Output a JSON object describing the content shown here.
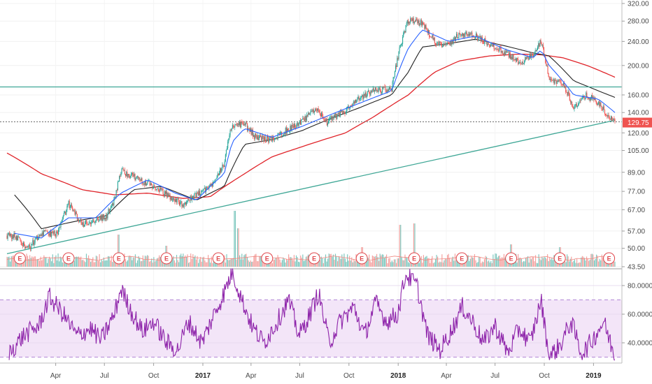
{
  "colors": {
    "up": "#26a69a",
    "down": "#ef5350",
    "vol_up": "#7fc8bf",
    "vol_down": "#f4a3a1",
    "ma_fast": "#2962ff",
    "ma_mid": "#222222",
    "ma_slow": "#e0242a",
    "trendline": "#3fa796",
    "hline": "#3fa796",
    "rsi_line": "#8e24aa",
    "rsi_band": "#f3e5f8",
    "rsi_dash": "#b388d6",
    "price_tag": "#ef5350",
    "earnings": "#e0474c"
  },
  "chart_data": [
    {
      "type": "candlestick",
      "panel": "price",
      "scale": "log",
      "y_ticks": [
        "320.00",
        "280.00",
        "240.00",
        "200.00",
        "160.00",
        "140.00",
        "120.00",
        "105.00",
        "89.00",
        "77.00",
        "67.00",
        "57.00",
        "50.00",
        "43.50"
      ],
      "x_labels": [
        {
          "label": "Apr",
          "date": "2016-04"
        },
        {
          "label": "Jul",
          "date": "2016-07"
        },
        {
          "label": "Oct",
          "date": "2016-10"
        },
        {
          "label": "2017",
          "date": "2017-01"
        },
        {
          "label": "Apr",
          "date": "2017-04"
        },
        {
          "label": "Jul",
          "date": "2017-07"
        },
        {
          "label": "Oct",
          "date": "2017-10"
        },
        {
          "label": "2018",
          "date": "2018-01"
        },
        {
          "label": "Apr",
          "date": "2018-04"
        },
        {
          "label": "Jul",
          "date": "2018-07"
        },
        {
          "label": "Oct",
          "date": "2018-10"
        },
        {
          "label": "2019",
          "date": "2019-01"
        }
      ],
      "close_path": [
        [
          "2016-01-15",
          55
        ],
        [
          "2016-02-10",
          50
        ],
        [
          "2016-03-05",
          56
        ],
        [
          "2016-04-05",
          56
        ],
        [
          "2016-04-25",
          70
        ],
        [
          "2016-05-20",
          60
        ],
        [
          "2016-06-15",
          62
        ],
        [
          "2016-07-05",
          64
        ],
        [
          "2016-07-20",
          72
        ],
        [
          "2016-08-01",
          90
        ],
        [
          "2016-08-25",
          86
        ],
        [
          "2016-09-20",
          82
        ],
        [
          "2016-10-15",
          77
        ],
        [
          "2016-11-10",
          72
        ],
        [
          "2016-11-25",
          70
        ],
        [
          "2016-12-20",
          75
        ],
        [
          "2017-01-15",
          80
        ],
        [
          "2017-02-10",
          95
        ],
        [
          "2017-02-25",
          128
        ],
        [
          "2017-03-20",
          128
        ],
        [
          "2017-04-10",
          116
        ],
        [
          "2017-05-10",
          114
        ],
        [
          "2017-06-05",
          122
        ],
        [
          "2017-07-05",
          130
        ],
        [
          "2017-08-01",
          145
        ],
        [
          "2017-08-20",
          130
        ],
        [
          "2017-09-25",
          142
        ],
        [
          "2017-10-20",
          155
        ],
        [
          "2017-11-15",
          165
        ],
        [
          "2017-12-20",
          168
        ],
        [
          "2018-01-05",
          230
        ],
        [
          "2018-01-20",
          282
        ],
        [
          "2018-02-15",
          275
        ],
        [
          "2018-03-10",
          240
        ],
        [
          "2018-04-05",
          232
        ],
        [
          "2018-04-25",
          255
        ],
        [
          "2018-05-25",
          250
        ],
        [
          "2018-06-20",
          236
        ],
        [
          "2018-07-20",
          220
        ],
        [
          "2018-08-15",
          205
        ],
        [
          "2018-09-10",
          215
        ],
        [
          "2018-09-25",
          240
        ],
        [
          "2018-10-10",
          180
        ],
        [
          "2018-11-05",
          175
        ],
        [
          "2018-11-25",
          145
        ],
        [
          "2018-12-20",
          160
        ],
        [
          "2019-01-10",
          150
        ],
        [
          "2019-01-30",
          135
        ],
        [
          "2019-02-10",
          129.75
        ]
      ],
      "last_price": "129.75",
      "moving_averages": [
        {
          "role": "ma_fast",
          "path": [
            [
              "2016-01-15",
              56
            ],
            [
              "2016-03-05",
              54
            ],
            [
              "2016-04-25",
              63
            ],
            [
              "2016-06-15",
              63
            ],
            [
              "2016-08-01",
              76
            ],
            [
              "2016-09-20",
              84
            ],
            [
              "2016-11-10",
              76
            ],
            [
              "2016-12-20",
              72
            ],
            [
              "2017-02-10",
              88
            ],
            [
              "2017-02-25",
              112
            ],
            [
              "2017-03-20",
              124
            ],
            [
              "2017-05-10",
              116
            ],
            [
              "2017-07-05",
              126
            ],
            [
              "2017-08-20",
              136
            ],
            [
              "2017-10-20",
              150
            ],
            [
              "2017-12-20",
              165
            ],
            [
              "2018-01-20",
              228
            ],
            [
              "2018-02-15",
              262
            ],
            [
              "2018-04-05",
              240
            ],
            [
              "2018-05-25",
              250
            ],
            [
              "2018-07-20",
              226
            ],
            [
              "2018-09-10",
              212
            ],
            [
              "2018-09-25",
              225
            ],
            [
              "2018-10-10",
              200
            ],
            [
              "2018-11-25",
              160
            ],
            [
              "2019-01-10",
              155
            ],
            [
              "2019-02-10",
              140
            ]
          ]
        },
        {
          "role": "ma_mid",
          "path": [
            [
              "2016-01-15",
              75
            ],
            [
              "2016-03-05",
              58
            ],
            [
              "2016-05-20",
              62
            ],
            [
              "2016-07-05",
              64
            ],
            [
              "2016-08-25",
              78
            ],
            [
              "2016-10-15",
              80
            ],
            [
              "2016-12-20",
              72
            ],
            [
              "2017-02-10",
              80
            ],
            [
              "2017-03-20",
              110
            ],
            [
              "2017-05-10",
              114
            ],
            [
              "2017-07-05",
              122
            ],
            [
              "2017-08-20",
              132
            ],
            [
              "2017-10-20",
              145
            ],
            [
              "2017-12-20",
              160
            ],
            [
              "2018-01-20",
              190
            ],
            [
              "2018-02-15",
              230
            ],
            [
              "2018-04-05",
              236
            ],
            [
              "2018-05-25",
              244
            ],
            [
              "2018-07-20",
              232
            ],
            [
              "2018-09-10",
              220
            ],
            [
              "2018-10-10",
              215
            ],
            [
              "2018-11-25",
              178
            ],
            [
              "2019-01-10",
              165
            ],
            [
              "2019-02-10",
              157
            ]
          ]
        },
        {
          "role": "ma_slow",
          "path": [
            [
              "2016-01-01",
              103
            ],
            [
              "2016-03-05",
              88
            ],
            [
              "2016-05-20",
              78
            ],
            [
              "2016-07-20",
              75
            ],
            [
              "2016-09-20",
              76
            ],
            [
              "2016-11-25",
              73
            ],
            [
              "2017-01-15",
              74
            ],
            [
              "2017-03-20",
              88
            ],
            [
              "2017-05-10",
              100
            ],
            [
              "2017-07-05",
              108
            ],
            [
              "2017-09-25",
              120
            ],
            [
              "2017-11-15",
              135
            ],
            [
              "2017-12-20",
              148
            ],
            [
              "2018-01-20",
              160
            ],
            [
              "2018-03-10",
              190
            ],
            [
              "2018-04-25",
              207
            ],
            [
              "2018-06-20",
              215
            ],
            [
              "2018-08-15",
              218
            ],
            [
              "2018-09-25",
              217
            ],
            [
              "2018-11-05",
              212
            ],
            [
              "2018-12-20",
              200
            ],
            [
              "2019-02-10",
              183
            ]
          ]
        }
      ],
      "trendline": {
        "from": [
          "2016-01-01",
          48
        ],
        "to": [
          "2019-02-10",
          132
        ]
      },
      "horizontal_lines": [
        170,
        130.5
      ],
      "earnings_markers": [
        "2016-01-25",
        "2016-04-25",
        "2016-07-28",
        "2016-10-25",
        "2017-01-30",
        "2017-05-01",
        "2017-07-28",
        "2017-10-25",
        "2018-01-31",
        "2018-04-30",
        "2018-07-31",
        "2018-10-30",
        "2019-01-30"
      ],
      "earnings_label": "E"
    },
    {
      "type": "line",
      "panel": "rsi",
      "y_ticks": [
        "80.0000",
        "60.0000",
        "40.0000"
      ],
      "band": [
        30,
        70
      ],
      "ylim": [
        25,
        92
      ],
      "path": [
        [
          "2016-01-05",
          33
        ],
        [
          "2016-02-01",
          45
        ],
        [
          "2016-03-01",
          52
        ],
        [
          "2016-03-20",
          72
        ],
        [
          "2016-04-15",
          60
        ],
        [
          "2016-05-10",
          45
        ],
        [
          "2016-06-05",
          50
        ],
        [
          "2016-06-25",
          42
        ],
        [
          "2016-07-20",
          60
        ],
        [
          "2016-08-01",
          78
        ],
        [
          "2016-08-20",
          62
        ],
        [
          "2016-09-10",
          48
        ],
        [
          "2016-10-01",
          55
        ],
        [
          "2016-10-25",
          40
        ],
        [
          "2016-11-15",
          35
        ],
        [
          "2016-12-05",
          55
        ],
        [
          "2016-12-30",
          40
        ],
        [
          "2017-01-20",
          58
        ],
        [
          "2017-02-10",
          75
        ],
        [
          "2017-02-25",
          90
        ],
        [
          "2017-03-15",
          70
        ],
        [
          "2017-04-05",
          50
        ],
        [
          "2017-04-25",
          40
        ],
        [
          "2017-05-20",
          55
        ],
        [
          "2017-06-10",
          70
        ],
        [
          "2017-06-30",
          45
        ],
        [
          "2017-07-20",
          60
        ],
        [
          "2017-08-05",
          75
        ],
        [
          "2017-08-25",
          40
        ],
        [
          "2017-09-15",
          55
        ],
        [
          "2017-10-10",
          65
        ],
        [
          "2017-10-30",
          45
        ],
        [
          "2017-11-20",
          68
        ],
        [
          "2017-12-10",
          55
        ],
        [
          "2017-12-31",
          60
        ],
        [
          "2018-01-15",
          88
        ],
        [
          "2018-02-05",
          80
        ],
        [
          "2018-02-25",
          45
        ],
        [
          "2018-03-20",
          35
        ],
        [
          "2018-04-10",
          48
        ],
        [
          "2018-05-01",
          65
        ],
        [
          "2018-05-20",
          55
        ],
        [
          "2018-06-10",
          40
        ],
        [
          "2018-07-01",
          52
        ],
        [
          "2018-07-25",
          33
        ],
        [
          "2018-08-15",
          50
        ],
        [
          "2018-09-05",
          40
        ],
        [
          "2018-09-25",
          70
        ],
        [
          "2018-10-10",
          30
        ],
        [
          "2018-10-30",
          38
        ],
        [
          "2018-11-20",
          55
        ],
        [
          "2018-12-10",
          32
        ],
        [
          "2018-12-30",
          42
        ],
        [
          "2019-01-20",
          55
        ],
        [
          "2019-02-10",
          30
        ]
      ]
    }
  ]
}
